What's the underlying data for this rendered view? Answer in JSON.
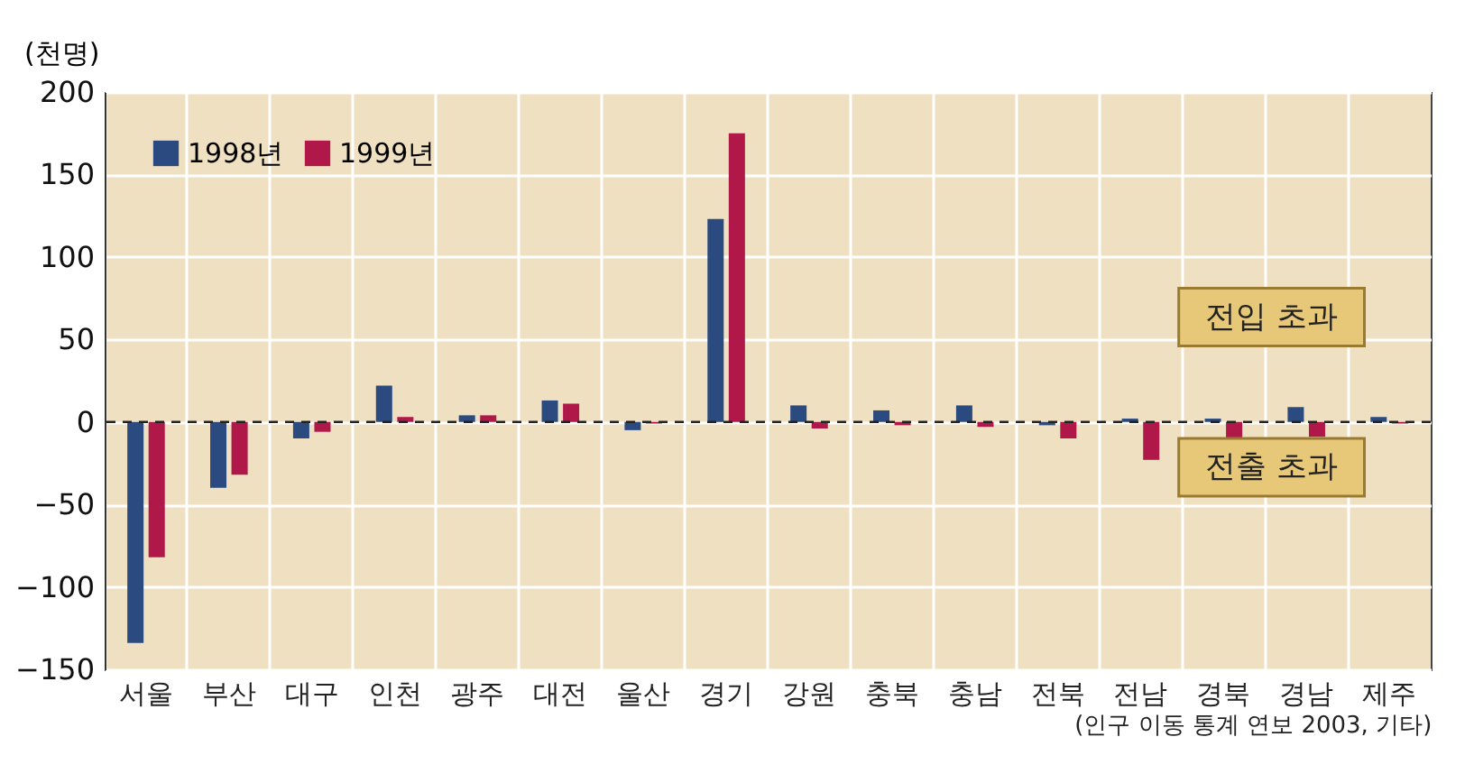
{
  "chart_data": {
    "type": "bar",
    "ylabel": "(천명)",
    "categories": [
      "서울",
      "부산",
      "대구",
      "인천",
      "광주",
      "대전",
      "울산",
      "경기",
      "강원",
      "충북",
      "충남",
      "전북",
      "전남",
      "경북",
      "경남",
      "제주"
    ],
    "series": [
      {
        "name": "1998년",
        "color": "#2a4a80",
        "values": [
          -134,
          -40,
          -10,
          22,
          4,
          13,
          -5,
          123,
          10,
          7,
          10,
          -2,
          2,
          2,
          9,
          3
        ]
      },
      {
        "name": "1999년",
        "color": "#b0184a",
        "values": [
          -82,
          -32,
          -6,
          3,
          4,
          11,
          -1,
          175,
          -4,
          -2,
          -3,
          -10,
          -23,
          -11,
          -9,
          -1
        ]
      }
    ],
    "ylim": [
      -150,
      200
    ],
    "yticks": [
      -150,
      -100,
      -50,
      0,
      50,
      100,
      150,
      200
    ],
    "grid": true,
    "legend": "top left",
    "ref_lines": [
      {
        "axis": "y",
        "value": 0,
        "line_style": "dashed",
        "color": "#222222"
      }
    ],
    "annotations": [
      "전입 초과",
      "전출 초과",
      "(인구 이동 통계 연보 2003, 기타)"
    ]
  }
}
